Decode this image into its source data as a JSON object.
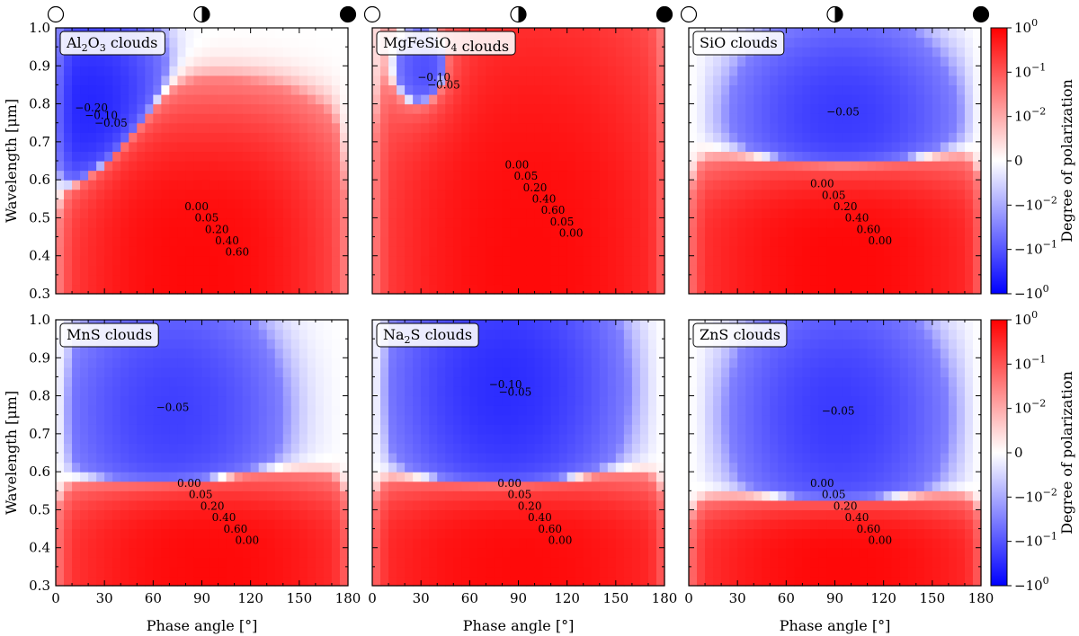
{
  "chart_data": {
    "type": "heatmap",
    "xlabel": "Phase angle [°]",
    "ylabel": "Wavelength [μm]",
    "colorbar_label": "Degree of polarization",
    "xlim": [
      0,
      180
    ],
    "ylim": [
      0.3,
      1.0
    ],
    "x_ticks": [
      "0",
      "30",
      "60",
      "90",
      "120",
      "150",
      "180"
    ],
    "y_ticks": [
      "0.3",
      "0.4",
      "0.5",
      "0.6",
      "0.7",
      "0.8",
      "0.9",
      "1.0"
    ],
    "colorbar_ticks": [
      {
        "base": "10",
        "exp": "0",
        "sign": "",
        "value": 1.0
      },
      {
        "base": "10",
        "exp": "−1",
        "sign": "",
        "value": 0.1
      },
      {
        "base": "10",
        "exp": "−2",
        "sign": "",
        "value": 0.01
      },
      {
        "base": "0",
        "exp": "",
        "sign": "",
        "value": 0
      },
      {
        "base": "10",
        "exp": "−2",
        "sign": "−",
        "value": -0.01
      },
      {
        "base": "10",
        "exp": "−1",
        "sign": "−",
        "value": -0.1
      },
      {
        "base": "10",
        "exp": "0",
        "sign": "−",
        "value": -1.0
      }
    ],
    "colorscale": {
      "positive": "#ff0000",
      "zero": "#ffffff",
      "negative": "#0000ff",
      "scale": "symlog"
    },
    "phase_markers": [
      "full",
      "half",
      "new"
    ],
    "panels": [
      {
        "id": "Al2O3",
        "title_parts": [
          "Al",
          "2",
          "O",
          "3",
          " clouds"
        ],
        "cold": {
          "xc": 22,
          "yc": 0.78,
          "ra": 36,
          "rb": 0.24,
          "amp": 0.26
        },
        "warm": {
          "xc": 88,
          "yc": 0.33,
          "ra": 62,
          "rb": 0.34,
          "amp": 0.72,
          "gx": 2.6,
          "gy": 3.2
        },
        "contour_labels": [
          "−0.20",
          "−0.10",
          "−0.05",
          "0.00",
          "0.05",
          "0.20",
          "0.40",
          "0.60"
        ]
      },
      {
        "id": "MgFeSiO4",
        "title_parts": [
          "MgFeSiO",
          "4",
          "",
          "",
          " clouds"
        ],
        "cold": {
          "xc": 38,
          "yc": 0.86,
          "ra": 30,
          "rb": 0.2,
          "amp": 0.2
        },
        "warm": {
          "xc": 98,
          "yc": 0.38,
          "ra": 70,
          "rb": 0.55,
          "amp": 0.7,
          "gx": 2.4,
          "gy": 2.2
        },
        "contour_labels": [
          "−0.10",
          "−0.05",
          "0.00",
          "0.05",
          "0.20",
          "0.40",
          "0.60",
          "0.05",
          "0.00"
        ]
      },
      {
        "id": "SiO",
        "title_parts": [
          "SiO clouds",
          "",
          "",
          "",
          ""
        ],
        "cold": {
          "xc": 95,
          "yc": 0.77,
          "ra": 56,
          "rb": 0.22,
          "amp": 0.12
        },
        "warm": {
          "xc": 95,
          "yc": 0.36,
          "ra": 72,
          "rb": 0.22,
          "amp": 0.75,
          "gx": 2.2,
          "gy": 3.5
        },
        "contour_labels": [
          "−0.05",
          "0.00",
          "0.05",
          "0.20",
          "0.40",
          "0.60",
          "0.00"
        ]
      },
      {
        "id": "MnS",
        "title_parts": [
          "MnS clouds",
          "",
          "",
          "",
          ""
        ],
        "cold": {
          "xc": 72,
          "yc": 0.76,
          "ra": 56,
          "rb": 0.28,
          "amp": 0.1
        },
        "warm": {
          "xc": 95,
          "yc": 0.34,
          "ra": 70,
          "rb": 0.18,
          "amp": 0.72,
          "gx": 2.2,
          "gy": 3.5
        },
        "contour_labels": [
          "−0.05",
          "0.00",
          "0.05",
          "0.20",
          "0.40",
          "0.60",
          "0.00"
        ]
      },
      {
        "id": "Na2S",
        "title_parts": [
          "Na",
          "2",
          "S clouds",
          "",
          ""
        ],
        "cold": {
          "xc": 82,
          "yc": 0.82,
          "ra": 55,
          "rb": 0.3,
          "amp": 0.2
        },
        "warm": {
          "xc": 92,
          "yc": 0.34,
          "ra": 78,
          "rb": 0.18,
          "amp": 0.7,
          "gx": 2.2,
          "gy": 3.5
        },
        "contour_labels": [
          "−0.10",
          "−0.05",
          "0.00",
          "0.05",
          "0.20",
          "0.40",
          "0.60",
          "0.00"
        ]
      },
      {
        "id": "ZnS",
        "title_parts": [
          "ZnS clouds",
          "",
          "",
          "",
          ""
        ],
        "cold": {
          "xc": 92,
          "yc": 0.75,
          "ra": 54,
          "rb": 0.28,
          "amp": 0.12
        },
        "warm": {
          "xc": 95,
          "yc": 0.34,
          "ra": 72,
          "rb": 0.14,
          "amp": 0.75,
          "gx": 2.2,
          "gy": 3.5
        },
        "contour_labels": [
          "−0.05",
          "0.00",
          "0.05",
          "0.20",
          "0.40",
          "0.60",
          "0.00"
        ]
      }
    ]
  }
}
